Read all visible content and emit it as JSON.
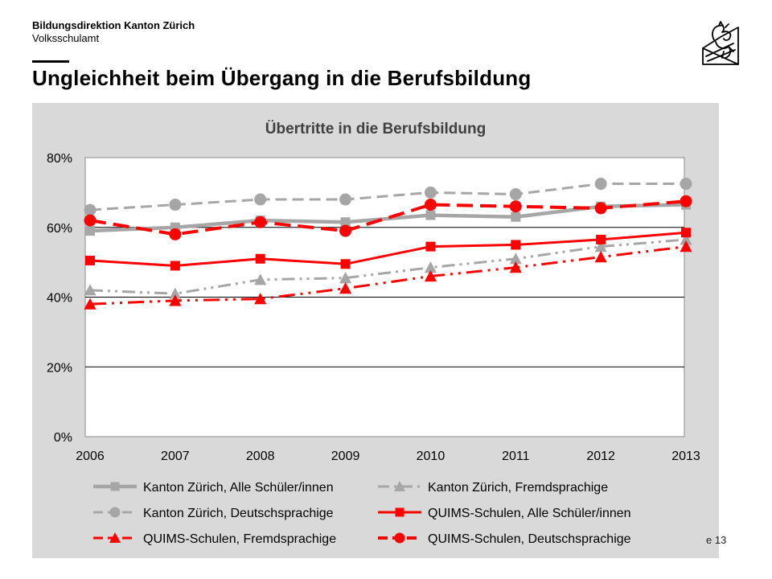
{
  "header": {
    "org_name": "Bildungsdirektion Kanton Zürich",
    "org_sub": "Volksschulamt",
    "title": "Ungleichheit beim Übergang in die Berufsbildung",
    "page_number": "e 13"
  },
  "chart_data": {
    "type": "line",
    "title": "Übertritte in die Berufsbildung",
    "xlabel": "",
    "ylabel": "",
    "categories": [
      "2006",
      "2007",
      "2008",
      "2009",
      "2010",
      "2011",
      "2012",
      "2013"
    ],
    "ylim": [
      0,
      80
    ],
    "yticks": [
      0,
      20,
      40,
      60,
      80
    ],
    "ytick_labels": [
      "0%",
      "20%",
      "40%",
      "60%",
      "80%"
    ],
    "grid": "horizontal",
    "legend_position": "bottom",
    "series": [
      {
        "name": "Kanton Zürich, Alle Schüler/innen",
        "values": [
          59,
          60,
          62,
          61.5,
          63.5,
          63,
          66,
          66.5
        ],
        "color": "#a6a6a6",
        "dash": "solid",
        "marker": "square",
        "width": 4.5
      },
      {
        "name": "Kanton Zürich, Fremdsprachige",
        "values": [
          42,
          41,
          45,
          45.5,
          48.5,
          51,
          54.5,
          56.5
        ],
        "color": "#a6a6a6",
        "dash": "dashdot",
        "marker": "triangle",
        "width": 3
      },
      {
        "name": "Kanton Zürich, Deutschsprachige",
        "values": [
          65,
          66.5,
          68,
          68,
          70,
          69.5,
          72.5,
          72.5
        ],
        "color": "#a6a6a6",
        "dash": "dash",
        "marker": "circle",
        "width": 3
      },
      {
        "name": "QUIMS-Schulen, Alle Schüler/innen",
        "values": [
          50.5,
          49,
          51,
          49.5,
          54.5,
          55,
          56.5,
          58.5
        ],
        "color": "#ff0000",
        "dash": "solid",
        "marker": "square",
        "width": 3
      },
      {
        "name": "QUIMS-Schulen, Fremdsprachige",
        "values": [
          38,
          39,
          39.5,
          42.5,
          46,
          48.5,
          51.5,
          54.5
        ],
        "color": "#ff0000",
        "dash": "longdashdot",
        "marker": "triangle",
        "width": 3
      },
      {
        "name": "QUIMS-Schulen, Deutschsprachige",
        "values": [
          62,
          58,
          61.5,
          59,
          66.5,
          66,
          65.5,
          67.5
        ],
        "color": "#ff0000",
        "dash": "longdash",
        "marker": "circle",
        "width": 4
      }
    ]
  }
}
